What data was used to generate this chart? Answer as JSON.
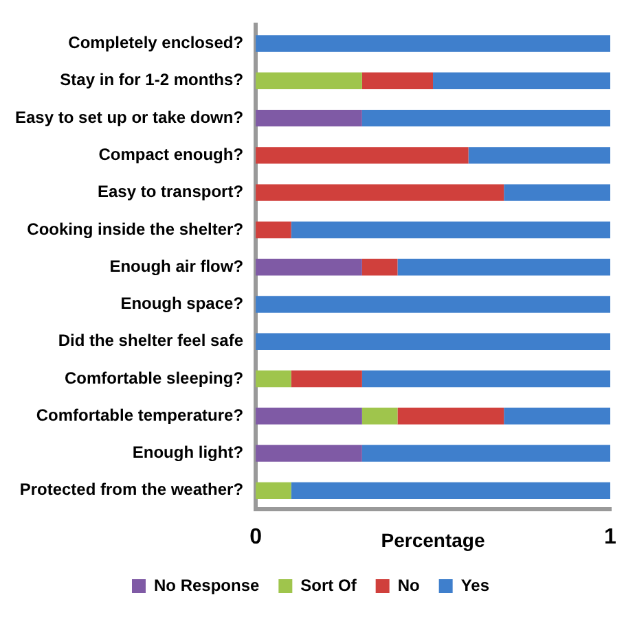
{
  "chart_data": {
    "type": "bar",
    "orientation": "horizontal",
    "stacked": true,
    "categories": [
      "Completely enclosed?",
      "Stay in for 1-2 months?",
      "Easy to set up or take down?",
      "Compact enough?",
      "Easy to transport?",
      "Cooking inside the shelter?",
      "Enough air flow?",
      "Enough space?",
      "Did the shelter feel safe",
      "Comfortable sleeping?",
      "Comfortable temperature?",
      "Enough light?",
      "Protected from the weather?"
    ],
    "series": [
      {
        "name": "No Response",
        "color": "#7f5aa5",
        "values": [
          0,
          0,
          0.3,
          0,
          0,
          0,
          0.3,
          0,
          0,
          0,
          0.3,
          0.3,
          0
        ]
      },
      {
        "name": "Sort Of",
        "color": "#9fc54c",
        "values": [
          0,
          0.3,
          0,
          0,
          0,
          0,
          0,
          0,
          0,
          0.1,
          0.1,
          0,
          0.1
        ]
      },
      {
        "name": "No",
        "color": "#d0403c",
        "values": [
          0,
          0.2,
          0,
          0.6,
          0.7,
          0.1,
          0.1,
          0,
          0,
          0.2,
          0.3,
          0,
          0
        ]
      },
      {
        "name": "Yes",
        "color": "#3f7fcc",
        "values": [
          1,
          0.5,
          0.7,
          0.4,
          0.3,
          0.9,
          0.6,
          1,
          1,
          0.7,
          0.3,
          0.7,
          0.9
        ]
      }
    ],
    "xlabel": "Percentage",
    "xlim": [
      0,
      1
    ],
    "xticks": [
      0,
      1
    ],
    "legend": "bottom"
  }
}
